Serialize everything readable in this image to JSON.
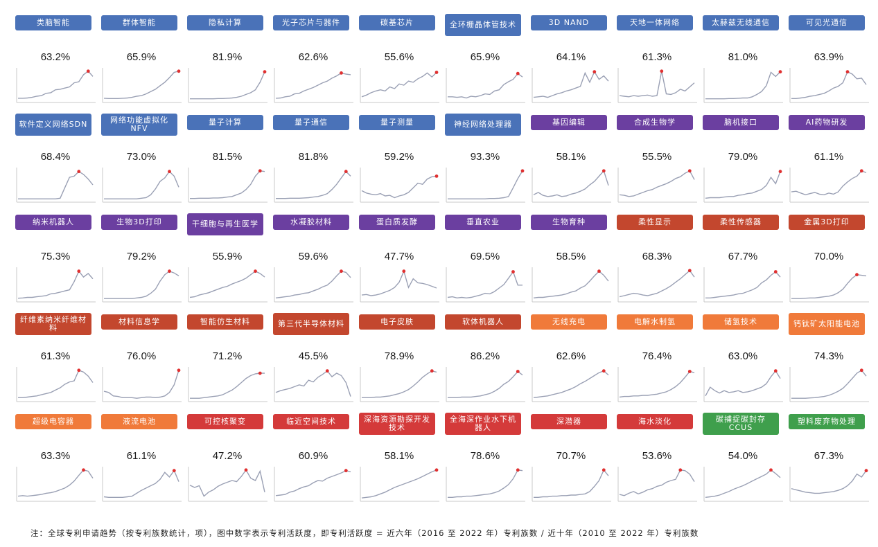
{
  "colors": {
    "blue": "#4a72b8",
    "purple": "#6b3fa0",
    "red": "#c3472e",
    "orange": "#f07a3a",
    "crimson": "#d43a3a",
    "green": "#3f9f4c",
    "line": "#9aa0b4",
    "axis": "#c8c8c8",
    "peak": "#e03030"
  },
  "note": "注：全球专利申请趋势（按专利族数统计，项），图中数字表示专利活跃度，即专利活跃度 = 近六年（2016 至 2022 年）专利族数 / 近十年（2010 至 2022 年）专利族数",
  "chart_data": [
    {
      "type": "line",
      "title": "类脑智能",
      "subtitle": "63.2%",
      "color": "blue",
      "y": [
        5,
        5,
        6,
        8,
        12,
        14,
        22,
        24,
        34,
        36,
        40,
        44,
        58,
        62,
        86,
        98,
        80
      ]
    },
    {
      "type": "line",
      "title": "群体智能",
      "subtitle": "65.9%",
      "color": "blue",
      "y": [
        5,
        4,
        4,
        4,
        5,
        6,
        8,
        12,
        14,
        20,
        28,
        36,
        48,
        60,
        76,
        94,
        98
      ]
    },
    {
      "type": "line",
      "title": "隐私计算",
      "subtitle": "81.9%",
      "color": "blue",
      "y": [
        3,
        3,
        3,
        3,
        3,
        3,
        4,
        4,
        5,
        6,
        8,
        12,
        18,
        24,
        34,
        60,
        96
      ]
    },
    {
      "type": "line",
      "title": "光子芯片与器件",
      "subtitle": "62.6%",
      "color": "blue",
      "y": [
        5,
        6,
        10,
        12,
        20,
        22,
        30,
        36,
        42,
        50,
        58,
        64,
        74,
        82,
        92,
        88,
        86
      ]
    },
    {
      "type": "line",
      "title": "碳基芯片",
      "subtitle": "55.6%",
      "color": "blue",
      "y": [
        10,
        16,
        24,
        30,
        34,
        30,
        44,
        38,
        54,
        50,
        64,
        60,
        72,
        80,
        92,
        78,
        94
      ]
    },
    {
      "type": "line",
      "title": "全环栅晶体管技术",
      "subtitle": "65.9%",
      "color": "blue",
      "tall": true,
      "y": [
        10,
        10,
        8,
        10,
        6,
        12,
        10,
        14,
        20,
        18,
        30,
        34,
        52,
        62,
        70,
        90,
        78
      ]
    },
    {
      "type": "line",
      "title": "3D NAND",
      "subtitle": "64.1%",
      "color": "blue",
      "y": [
        8,
        10,
        12,
        8,
        14,
        20,
        24,
        30,
        34,
        40,
        46,
        92,
        60,
        96,
        70,
        82,
        64
      ]
    },
    {
      "type": "line",
      "title": "天地一体网络",
      "subtitle": "61.3%",
      "color": "blue",
      "y": [
        14,
        12,
        10,
        14,
        12,
        14,
        16,
        12,
        14,
        98,
        20,
        18,
        24,
        36,
        30,
        44,
        58
      ]
    },
    {
      "type": "line",
      "title": "太赫兹无线通信",
      "subtitle": "81.0%",
      "color": "blue",
      "y": [
        3,
        3,
        3,
        3,
        3,
        4,
        4,
        5,
        6,
        6,
        10,
        18,
        28,
        48,
        94,
        80,
        96
      ]
    },
    {
      "type": "line",
      "title": "可见光通信",
      "subtitle": "63.9%",
      "color": "blue",
      "y": [
        4,
        4,
        6,
        8,
        12,
        14,
        18,
        22,
        30,
        40,
        46,
        58,
        96,
        88,
        72,
        74,
        52
      ]
    },
    {
      "type": "line",
      "title": "软件定义网络SDN",
      "subtitle": "68.4%",
      "color": "blue",
      "tall": true,
      "y": [
        2,
        2,
        2,
        2,
        2,
        2,
        2,
        2,
        2,
        4,
        40,
        76,
        80,
        96,
        86,
        70,
        50
      ]
    },
    {
      "type": "line",
      "title": "网络功能虚拟化NFV",
      "subtitle": "73.0%",
      "color": "blue",
      "tall": true,
      "y": [
        2,
        2,
        2,
        2,
        2,
        2,
        2,
        2,
        4,
        6,
        16,
        36,
        62,
        74,
        96,
        80,
        42
      ]
    },
    {
      "type": "line",
      "title": "量子计算",
      "subtitle": "81.5%",
      "color": "blue",
      "y": [
        3,
        3,
        4,
        4,
        4,
        5,
        5,
        6,
        8,
        10,
        16,
        22,
        34,
        52,
        80,
        98,
        96
      ]
    },
    {
      "type": "line",
      "title": "量子通信",
      "subtitle": "81.8%",
      "color": "blue",
      "y": [
        3,
        3,
        3,
        4,
        4,
        4,
        5,
        6,
        8,
        10,
        14,
        20,
        34,
        52,
        74,
        96,
        80
      ]
    },
    {
      "type": "line",
      "title": "量子测量",
      "subtitle": "59.2%",
      "color": "blue",
      "y": [
        30,
        22,
        18,
        16,
        20,
        12,
        14,
        6,
        12,
        16,
        24,
        40,
        56,
        52,
        70,
        78,
        80
      ]
    },
    {
      "type": "line",
      "title": "神经网络处理器",
      "subtitle": "93.3%",
      "color": "blue",
      "tall": true,
      "y": [
        2,
        2,
        2,
        2,
        2,
        2,
        2,
        2,
        2,
        3,
        3,
        4,
        6,
        10,
        40,
        72,
        98
      ]
    },
    {
      "type": "line",
      "title": "基因编辑",
      "subtitle": "58.1%",
      "color": "purple",
      "y": [
        16,
        24,
        14,
        10,
        12,
        16,
        10,
        12,
        18,
        22,
        28,
        36,
        50,
        62,
        80,
        98,
        48
      ]
    },
    {
      "type": "line",
      "title": "合成生物学",
      "subtitle": "55.5%",
      "color": "purple",
      "y": [
        16,
        14,
        10,
        12,
        18,
        24,
        30,
        34,
        42,
        48,
        54,
        62,
        72,
        78,
        90,
        98,
        68
      ]
    },
    {
      "type": "line",
      "title": "脑机接口",
      "subtitle": "79.0%",
      "color": "purple",
      "y": [
        4,
        6,
        6,
        6,
        8,
        10,
        10,
        14,
        16,
        20,
        22,
        28,
        34,
        48,
        76,
        54,
        96
      ]
    },
    {
      "type": "line",
      "title": "AI药物研发",
      "subtitle": "61.1%",
      "color": "purple",
      "y": [
        26,
        28,
        22,
        16,
        20,
        24,
        18,
        16,
        22,
        18,
        26,
        46,
        60,
        72,
        80,
        98,
        92
      ]
    },
    {
      "type": "line",
      "title": "纳米机器人",
      "subtitle": "75.3%",
      "color": "purple",
      "y": [
        3,
        4,
        6,
        6,
        8,
        10,
        12,
        18,
        20,
        24,
        28,
        32,
        60,
        96,
        76,
        88,
        70
      ]
    },
    {
      "type": "line",
      "title": "生物3D打印",
      "subtitle": "79.2%",
      "color": "purple",
      "y": [
        2,
        2,
        2,
        2,
        2,
        2,
        2,
        4,
        6,
        10,
        20,
        34,
        62,
        84,
        96,
        90,
        80
      ]
    },
    {
      "type": "line",
      "title": "干细胞与再生医学",
      "subtitle": "55.9%",
      "color": "purple",
      "tall": true,
      "y": [
        6,
        8,
        14,
        18,
        22,
        28,
        34,
        40,
        44,
        52,
        58,
        64,
        72,
        84,
        96,
        88,
        76
      ]
    },
    {
      "type": "line",
      "title": "水凝胶材料",
      "subtitle": "59.6%",
      "color": "purple",
      "y": [
        4,
        6,
        8,
        10,
        14,
        16,
        20,
        22,
        28,
        34,
        42,
        48,
        62,
        80,
        96,
        92,
        74
      ]
    },
    {
      "type": "line",
      "title": "蛋白质发酵",
      "subtitle": "47.7%",
      "color": "purple",
      "y": [
        14,
        16,
        12,
        14,
        18,
        24,
        30,
        40,
        58,
        96,
        40,
        70,
        56,
        54,
        50,
        44,
        38
      ]
    },
    {
      "type": "line",
      "title": "垂直农业",
      "subtitle": "69.5%",
      "color": "purple",
      "y": [
        6,
        8,
        4,
        6,
        4,
        6,
        10,
        14,
        20,
        18,
        26,
        38,
        50,
        72,
        94,
        48,
        48
      ]
    },
    {
      "type": "line",
      "title": "生物育种",
      "subtitle": "58.5%",
      "color": "purple",
      "y": [
        4,
        6,
        6,
        8,
        10,
        12,
        14,
        18,
        24,
        28,
        38,
        46,
        62,
        80,
        96,
        82,
        62
      ]
    },
    {
      "type": "line",
      "title": "柔性显示",
      "subtitle": "68.3%",
      "color": "red",
      "y": [
        8,
        12,
        16,
        20,
        18,
        14,
        12,
        16,
        20,
        28,
        36,
        46,
        58,
        70,
        84,
        98,
        76
      ]
    },
    {
      "type": "line",
      "title": "柔性传感器",
      "subtitle": "67.7%",
      "color": "red",
      "y": [
        4,
        4,
        6,
        8,
        10,
        12,
        14,
        18,
        20,
        26,
        32,
        40,
        56,
        66,
        82,
        94,
        76
      ]
    },
    {
      "type": "line",
      "title": "金属3D打印",
      "subtitle": "70.0%",
      "color": "red",
      "y": [
        2,
        2,
        2,
        3,
        4,
        4,
        6,
        8,
        10,
        14,
        22,
        34,
        54,
        72,
        84,
        82,
        80
      ]
    },
    {
      "type": "line",
      "title": "纤维素纳米纤维材料",
      "subtitle": "61.3%",
      "color": "red",
      "tall": true,
      "y": [
        4,
        4,
        6,
        8,
        10,
        14,
        18,
        22,
        30,
        38,
        50,
        58,
        62,
        98,
        92,
        78,
        56
      ]
    },
    {
      "type": "line",
      "title": "材料信息学",
      "subtitle": "76.0%",
      "color": "red",
      "y": [
        26,
        22,
        10,
        8,
        4,
        4,
        4,
        2,
        4,
        6,
        6,
        4,
        6,
        10,
        22,
        48,
        98
      ]
    },
    {
      "type": "line",
      "title": "智能仿生材料",
      "subtitle": "71.2%",
      "color": "red",
      "y": [
        2,
        2,
        2,
        4,
        6,
        8,
        10,
        14,
        22,
        30,
        42,
        56,
        70,
        80,
        86,
        88,
        88
      ]
    },
    {
      "type": "line",
      "title": "第三代半导体材料",
      "subtitle": "45.5%",
      "color": "red",
      "tall": true,
      "y": [
        22,
        28,
        32,
        36,
        42,
        48,
        44,
        64,
        58,
        74,
        84,
        96,
        76,
        88,
        80,
        56,
        8
      ]
    },
    {
      "type": "line",
      "title": "电子皮肤",
      "subtitle": "78.9%",
      "color": "red",
      "y": [
        4,
        4,
        4,
        6,
        6,
        8,
        10,
        14,
        18,
        24,
        32,
        44,
        58,
        74,
        86,
        96,
        92
      ]
    },
    {
      "type": "line",
      "title": "软体机器人",
      "subtitle": "86.2%",
      "color": "red",
      "y": [
        4,
        4,
        4,
        6,
        6,
        6,
        8,
        10,
        14,
        18,
        26,
        36,
        50,
        60,
        76,
        94,
        82
      ]
    },
    {
      "type": "line",
      "title": "无线充电",
      "subtitle": "62.6%",
      "color": "orange",
      "y": [
        4,
        6,
        8,
        10,
        14,
        18,
        22,
        28,
        34,
        42,
        52,
        60,
        70,
        80,
        90,
        96,
        82
      ]
    },
    {
      "type": "line",
      "title": "电解水制氢",
      "subtitle": "76.4%",
      "color": "orange",
      "y": [
        6,
        8,
        8,
        10,
        10,
        12,
        12,
        14,
        16,
        20,
        24,
        32,
        42,
        56,
        74,
        94,
        90
      ]
    },
    {
      "type": "line",
      "title": "储氢技术",
      "subtitle": "63.0%",
      "color": "orange",
      "y": [
        10,
        40,
        28,
        20,
        28,
        22,
        24,
        28,
        22,
        24,
        28,
        34,
        40,
        52,
        76,
        96,
        70
      ]
    },
    {
      "type": "line",
      "title": "钙钛矿太阳能电池",
      "subtitle": "74.3%",
      "color": "orange",
      "tall": true,
      "y": [
        2,
        2,
        2,
        2,
        3,
        4,
        6,
        8,
        12,
        18,
        26,
        36,
        52,
        70,
        88,
        98,
        78
      ]
    },
    {
      "type": "line",
      "title": "超级电容器",
      "subtitle": "63.3%",
      "color": "orange",
      "y": [
        8,
        10,
        8,
        10,
        12,
        14,
        18,
        20,
        24,
        30,
        36,
        46,
        60,
        80,
        98,
        94,
        70
      ]
    },
    {
      "type": "line",
      "title": "液流电池",
      "subtitle": "61.1%",
      "color": "orange",
      "y": [
        6,
        4,
        4,
        4,
        4,
        6,
        8,
        18,
        28,
        36,
        44,
        52,
        66,
        90,
        74,
        96,
        58
      ]
    },
    {
      "type": "line",
      "title": "可控核聚变",
      "subtitle": "47.2%",
      "color": "crimson",
      "y": [
        46,
        38,
        44,
        8,
        22,
        30,
        42,
        50,
        56,
        62,
        58,
        76,
        98,
        70,
        62,
        94,
        22
      ]
    },
    {
      "type": "line",
      "title": "临近空间技术",
      "subtitle": "60.9%",
      "color": "crimson",
      "y": [
        10,
        12,
        14,
        22,
        26,
        34,
        40,
        44,
        54,
        62,
        60,
        70,
        76,
        82,
        88,
        96,
        92
      ]
    },
    {
      "type": "line",
      "title": "深海资源勘探开发技术",
      "subtitle": "58.1%",
      "color": "crimson",
      "tall": true,
      "y": [
        2,
        4,
        6,
        10,
        16,
        22,
        30,
        38,
        44,
        50,
        56,
        62,
        68,
        76,
        84,
        92,
        98
      ]
    },
    {
      "type": "line",
      "title": "全海深作业水下机器人",
      "subtitle": "78.6%",
      "color": "crimson",
      "tall": true,
      "y": [
        4,
        4,
        6,
        6,
        8,
        8,
        10,
        12,
        14,
        16,
        20,
        26,
        36,
        48,
        68,
        98,
        96
      ]
    },
    {
      "type": "line",
      "title": "深潜器",
      "subtitle": "70.7%",
      "color": "crimson",
      "y": [
        4,
        4,
        6,
        6,
        8,
        8,
        10,
        10,
        12,
        12,
        14,
        16,
        24,
        42,
        62,
        98,
        78
      ]
    },
    {
      "type": "line",
      "title": "海水淡化",
      "subtitle": "53.6%",
      "color": "crimson",
      "y": [
        14,
        10,
        18,
        24,
        16,
        22,
        30,
        34,
        42,
        46,
        56,
        62,
        66,
        98,
        96,
        84,
        58
      ]
    },
    {
      "type": "line",
      "title": "碳捕捉碳封存CCUS",
      "subtitle": "54.0%",
      "color": "green",
      "tall": true,
      "y": [
        4,
        6,
        8,
        12,
        18,
        24,
        32,
        38,
        44,
        52,
        60,
        68,
        76,
        84,
        98,
        86,
        72
      ]
    },
    {
      "type": "line",
      "title": "塑料废弃物处理",
      "subtitle": "67.3%",
      "color": "green",
      "y": [
        34,
        30,
        26,
        22,
        20,
        18,
        18,
        20,
        22,
        24,
        28,
        34,
        44,
        60,
        84,
        74,
        96
      ]
    }
  ]
}
